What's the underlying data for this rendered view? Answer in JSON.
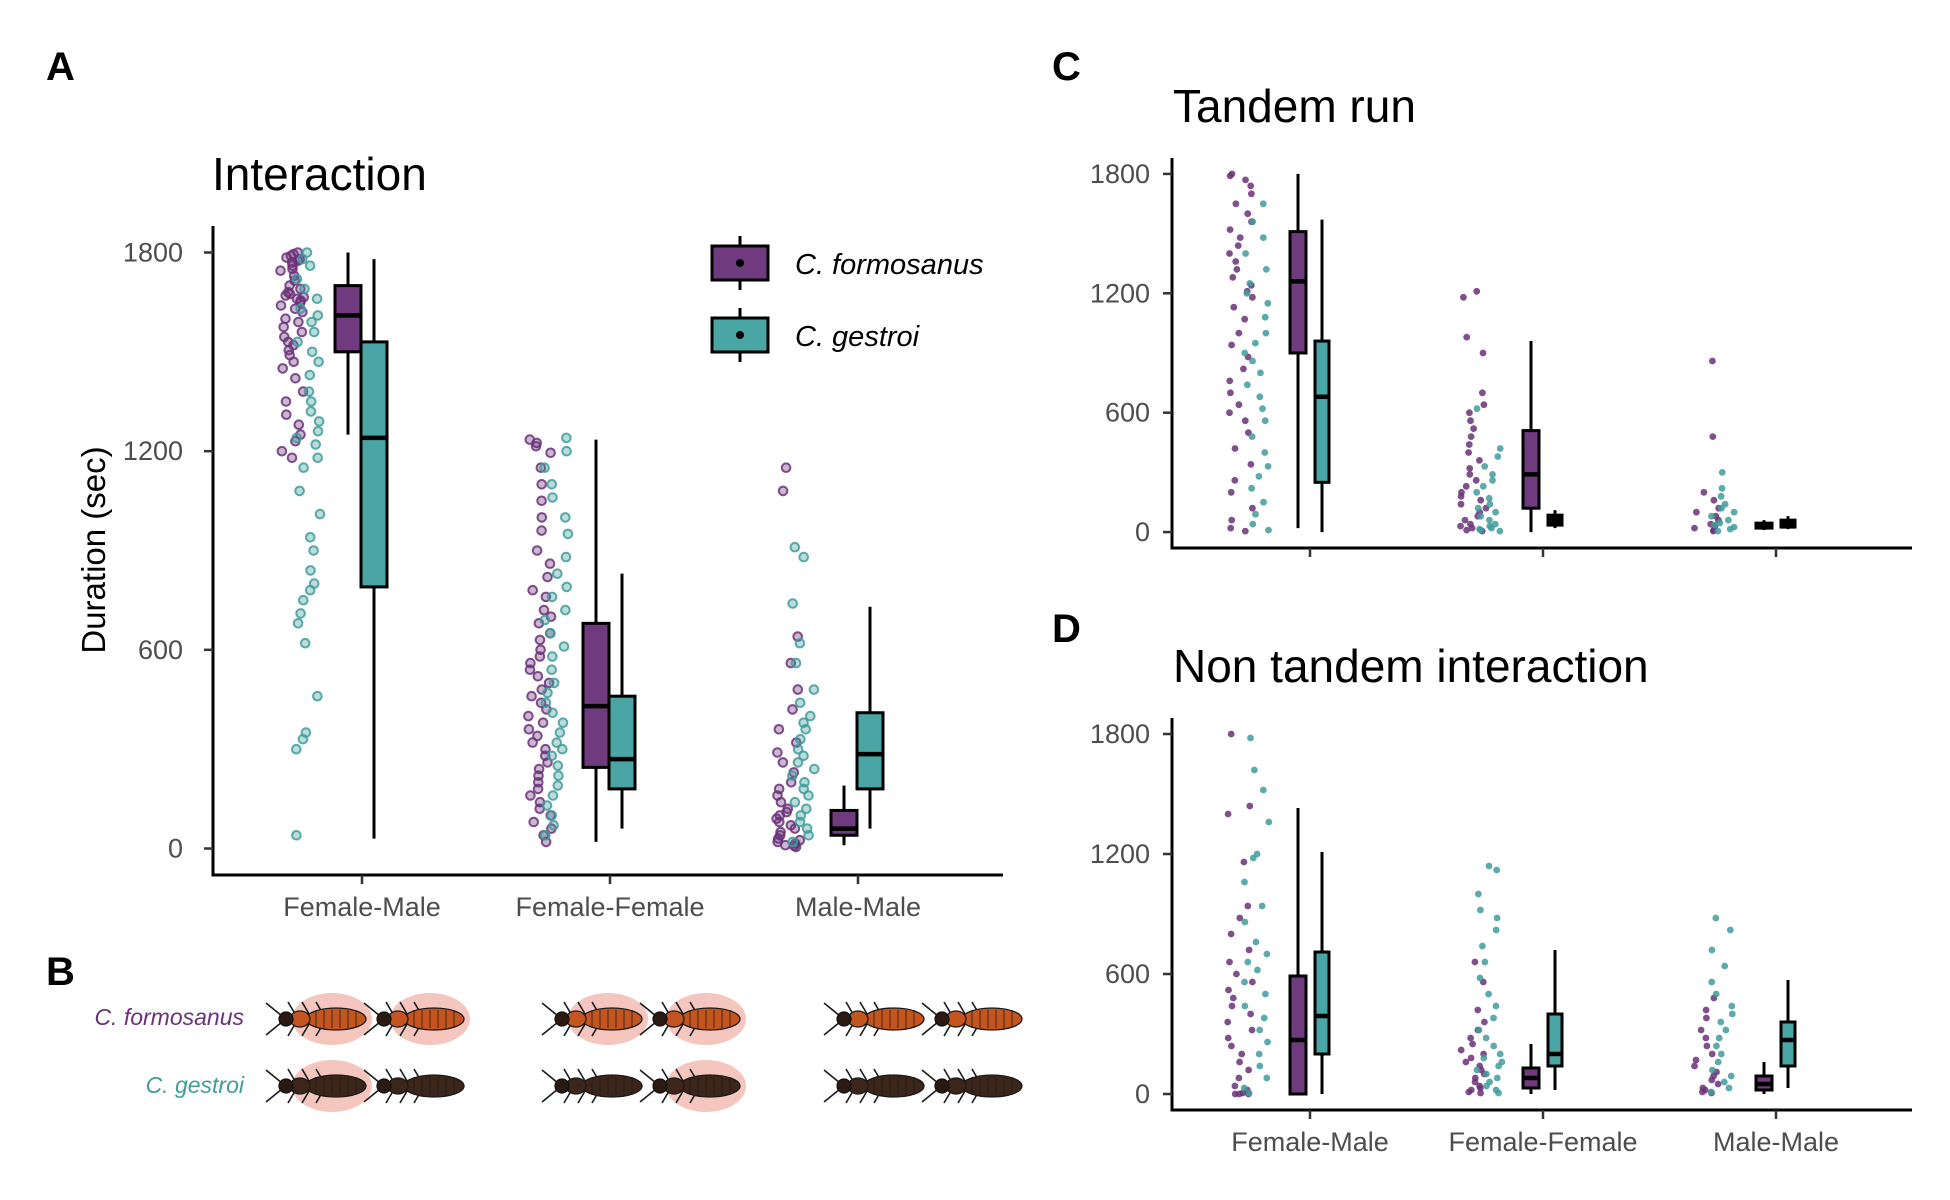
{
  "colors": {
    "formosanus": "#6a3179",
    "gestroi": "#3f9c9b",
    "formosanus_box": "#6f3a7e",
    "gestroi_box": "#4aa6a4",
    "termite_formosanus": "#c4551f",
    "termite_gestroi": "#3c2619",
    "glow": "#f0b3a8"
  },
  "panels": {
    "A": {
      "tag": "A",
      "title": "Interaction"
    },
    "B": {
      "tag": "B"
    },
    "C": {
      "tag": "C",
      "title": "Tandem run"
    },
    "D": {
      "tag": "D",
      "title": "Non tandem interaction"
    }
  },
  "legend": {
    "placement": "top-right of panel A",
    "items": [
      {
        "label": "C. formosanus",
        "color": "#6f3a7e"
      },
      {
        "label": "C. gestroi",
        "color": "#4aa6a4"
      }
    ]
  },
  "species_labels": {
    "formosanus": "C. formosanus",
    "gestroi": "C. gestroi"
  },
  "illustration": {
    "rows": [
      "formosanus",
      "gestroi"
    ],
    "pairs": [
      {
        "group": "Female-Male",
        "formosanus_glow": [
          true,
          true
        ],
        "gestroi_glow": [
          true,
          false
        ]
      },
      {
        "group": "Female-Female",
        "formosanus_glow": [
          true,
          true
        ],
        "gestroi_glow": [
          false,
          true
        ]
      },
      {
        "group": "Male-Male",
        "formosanus_glow": [
          false,
          false
        ],
        "gestroi_glow": [
          false,
          false
        ]
      }
    ]
  },
  "chart_data": [
    {
      "id": "A",
      "type": "box",
      "title": "Interaction",
      "ylabel": "Duration (sec)",
      "xlabel": "",
      "ylim": [
        -80,
        1880
      ],
      "yticks": [
        0,
        600,
        1200,
        1800
      ],
      "categories": [
        "Female-Male",
        "Female-Female",
        "Male-Male"
      ],
      "grid": false,
      "series": [
        {
          "name": "C. formosanus",
          "boxes": [
            {
              "min": 1250,
              "q1": 1500,
              "median": 1610,
              "q3": 1700,
              "max": 1800
            },
            {
              "min": 20,
              "q1": 245,
              "median": 430,
              "q3": 680,
              "max": 1235
            },
            {
              "min": 10,
              "q1": 40,
              "median": 60,
              "q3": 115,
              "max": 190
            }
          ],
          "points": [
            [
              1800,
              1795,
              1790,
              1785,
              1780,
              1775,
              1770,
              1760,
              1750,
              1745,
              1730,
              1715,
              1700,
              1690,
              1680,
              1675,
              1670,
              1665,
              1660,
              1655,
              1650,
              1640,
              1630,
              1620,
              1600,
              1590,
              1575,
              1560,
              1545,
              1530,
              1520,
              1505,
              1490,
              1470,
              1450,
              1420,
              1380,
              1350,
              1310,
              1280,
              1250,
              1230,
              1200,
              1180
            ],
            [
              1235,
              1225,
              1215,
              1195,
              1150,
              1100,
              1050,
              1000,
              960,
              900,
              860,
              820,
              780,
              760,
              720,
              700,
              680,
              650,
              630,
              600,
              580,
              560,
              540,
              520,
              500,
              480,
              460,
              440,
              420,
              400,
              380,
              360,
              340,
              320,
              300,
              280,
              260,
              240,
              220,
              200,
              180,
              160,
              140,
              120,
              100,
              80,
              60,
              40,
              20
            ],
            [
              1150,
              1080,
              640,
              560,
              480,
              420,
              360,
              320,
              290,
              260,
              230,
              200,
              180,
              160,
              140,
              120,
              110,
              100,
              90,
              80,
              70,
              60,
              50,
              40,
              30,
              25,
              20,
              15,
              10,
              8,
              5
            ]
          ]
        },
        {
          "name": "C. gestroi",
          "boxes": [
            {
              "min": 30,
              "q1": 790,
              "median": 1240,
              "q3": 1530,
              "max": 1780
            },
            {
              "min": 60,
              "q1": 180,
              "median": 270,
              "q3": 460,
              "max": 830
            },
            {
              "min": 60,
              "q1": 180,
              "median": 285,
              "q3": 410,
              "max": 730
            }
          ],
          "points": [
            [
              1800,
              1780,
              1760,
              1720,
              1690,
              1660,
              1630,
              1610,
              1590,
              1560,
              1530,
              1500,
              1470,
              1430,
              1380,
              1350,
              1320,
              1290,
              1260,
              1240,
              1220,
              1180,
              1150,
              1080,
              1010,
              940,
              900,
              840,
              800,
              780,
              750,
              710,
              680,
              620,
              460,
              350,
              330,
              300,
              40
            ],
            [
              1240,
              1200,
              1150,
              1100,
              1060,
              1000,
              950,
              880,
              830,
              790,
              760,
              720,
              690,
              650,
              610,
              580,
              540,
              500,
              470,
              440,
              410,
              380,
              350,
              320,
              300,
              280,
              250,
              220,
              190,
              160,
              130,
              100,
              70,
              40
            ],
            [
              910,
              880,
              740,
              620,
              560,
              480,
              440,
              400,
              380,
              360,
              330,
              300,
              280,
              260,
              240,
              220,
              200,
              180,
              160,
              140,
              120,
              100,
              80,
              60,
              40,
              20
            ]
          ]
        }
      ]
    },
    {
      "id": "C",
      "type": "box",
      "title": "Tandem run",
      "ylabel": "",
      "xlabel": "",
      "ylim": [
        -80,
        1880
      ],
      "yticks": [
        0,
        600,
        1200,
        1800
      ],
      "categories": [
        "Female-Male",
        "Female-Female",
        "Male-Male"
      ],
      "grid": false,
      "series": [
        {
          "name": "C. formosanus",
          "boxes": [
            {
              "min": 20,
              "q1": 900,
              "median": 1260,
              "q3": 1510,
              "max": 1800
            },
            {
              "min": 0,
              "q1": 120,
              "median": 290,
              "q3": 510,
              "max": 960
            },
            {
              "min": 10,
              "q1": 20,
              "median": 30,
              "q3": 45,
              "max": 60
            }
          ],
          "points": [
            [
              1800,
              1790,
              1770,
              1740,
              1700,
              1650,
              1600,
              1560,
              1520,
              1480,
              1440,
              1400,
              1360,
              1320,
              1280,
              1240,
              1210,
              1180,
              1130,
              1070,
              1000,
              940,
              880,
              820,
              760,
              700,
              640,
              600,
              560,
              500,
              420,
              340,
              260,
              200,
              120,
              60,
              20,
              5
            ],
            [
              1210,
              1180,
              980,
              900,
              700,
              640,
              600,
              560,
              520,
              480,
              440,
              400,
              360,
              320,
              290,
              260,
              230,
              200,
              180,
              160,
              140,
              120,
              100,
              80,
              60,
              40,
              30,
              20,
              10,
              5
            ],
            [
              860,
              480,
              200,
              160,
              120,
              100,
              80,
              60,
              40,
              30,
              20,
              10,
              5
            ]
          ]
        },
        {
          "name": "C. gestroi",
          "boxes": [
            {
              "min": 0,
              "q1": 250,
              "median": 680,
              "q3": 960,
              "max": 1570
            },
            {
              "min": 20,
              "q1": 35,
              "median": 55,
              "q3": 85,
              "max": 110
            },
            {
              "min": 15,
              "q1": 25,
              "median": 40,
              "q3": 60,
              "max": 80
            }
          ],
          "points": [
            [
              1650,
              1560,
              1480,
              1400,
              1320,
              1250,
              1200,
              1150,
              1080,
              1000,
              950,
              900,
              860,
              800,
              740,
              680,
              620,
              560,
              480,
              400,
              330,
              280,
              220,
              150,
              90,
              40,
              10
            ],
            [
              620,
              420,
              380,
              330,
              290,
              260,
              230,
              200,
              170,
              140,
              120,
              100,
              80,
              60,
              40,
              30,
              20,
              15,
              10,
              5
            ],
            [
              300,
              220,
              180,
              140,
              120,
              100,
              80,
              60,
              45,
              35,
              25,
              15,
              5
            ]
          ]
        }
      ]
    },
    {
      "id": "D",
      "type": "box",
      "title": "Non tandem interaction",
      "ylabel": "",
      "xlabel": "",
      "ylim": [
        -80,
        1880
      ],
      "yticks": [
        0,
        600,
        1200,
        1800
      ],
      "categories": [
        "Female-Male",
        "Female-Female",
        "Male-Male"
      ],
      "grid": false,
      "series": [
        {
          "name": "C. formosanus",
          "boxes": [
            {
              "min": 0,
              "q1": 0,
              "median": 270,
              "q3": 590,
              "max": 1430
            },
            {
              "min": 0,
              "q1": 30,
              "median": 80,
              "q3": 130,
              "max": 250
            },
            {
              "min": 0,
              "q1": 20,
              "median": 50,
              "q3": 90,
              "max": 160
            }
          ],
          "points": [
            [
              1800,
              1440,
              1400,
              1160,
              940,
              880,
              800,
              720,
              660,
              600,
              560,
              520,
              480,
              440,
              400,
              360,
              320,
              280,
              240,
              200,
              160,
              120,
              80,
              40,
              20,
              5,
              0,
              0,
              0
            ],
            [
              660,
              560,
              420,
              360,
              320,
              280,
              250,
              220,
              200,
              180,
              160,
              140,
              120,
              100,
              80,
              60,
              40,
              30,
              20,
              10,
              5
            ],
            [
              480,
              420,
              380,
              320,
              280,
              240,
              200,
              170,
              140,
              110,
              90,
              70,
              50,
              30,
              20,
              10,
              5
            ]
          ]
        },
        {
          "name": "C. gestroi",
          "boxes": [
            {
              "min": 0,
              "q1": 200,
              "median": 390,
              "q3": 710,
              "max": 1210
            },
            {
              "min": 20,
              "q1": 140,
              "median": 200,
              "q3": 400,
              "max": 720
            },
            {
              "min": 30,
              "q1": 140,
              "median": 270,
              "q3": 360,
              "max": 570
            }
          ],
          "points": [
            [
              1780,
              1620,
              1520,
              1360,
              1200,
              1180,
              1060,
              940,
              860,
              760,
              700,
              660,
              620,
              560,
              500,
              440,
              380,
              320,
              260,
              200,
              140,
              80,
              30,
              5
            ],
            [
              1140,
              1120,
              1000,
              920,
              880,
              820,
              740,
              660,
              580,
              500,
              440,
              380,
              320,
              280,
              240,
              200,
              180,
              160,
              140,
              120,
              100,
              80,
              60,
              40,
              20,
              5
            ],
            [
              880,
              820,
              720,
              640,
              560,
              500,
              440,
              400,
              360,
              320,
              280,
              240,
              200,
              160,
              120,
              90,
              60,
              30,
              10
            ]
          ]
        }
      ]
    }
  ]
}
